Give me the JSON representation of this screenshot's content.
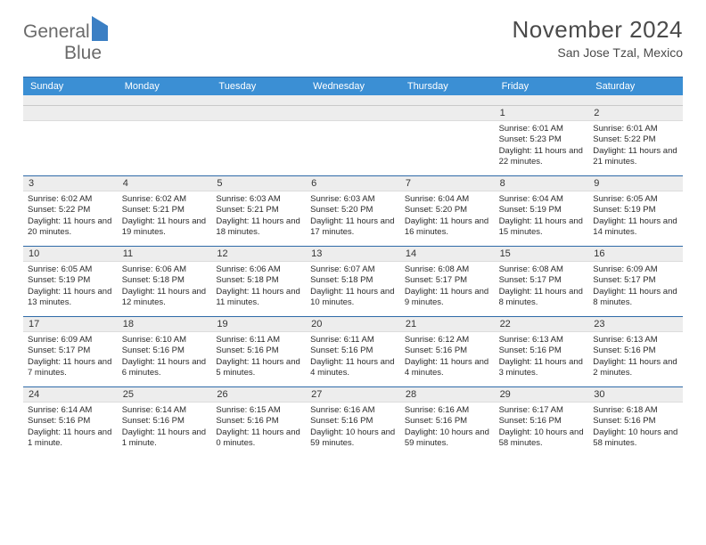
{
  "logo": {
    "general": "General",
    "blue": "Blue"
  },
  "title": "November 2024",
  "subtitle": "San Jose Tzal, Mexico",
  "colors": {
    "header_bg": "#3b8fd4",
    "rule": "#2f6aa8",
    "daynum_bg": "#ededed",
    "text": "#2b2b2b"
  },
  "dow": [
    "Sunday",
    "Monday",
    "Tuesday",
    "Wednesday",
    "Thursday",
    "Friday",
    "Saturday"
  ],
  "weeks": [
    [
      {
        "n": "",
        "sr": "",
        "ss": "",
        "dl": ""
      },
      {
        "n": "",
        "sr": "",
        "ss": "",
        "dl": ""
      },
      {
        "n": "",
        "sr": "",
        "ss": "",
        "dl": ""
      },
      {
        "n": "",
        "sr": "",
        "ss": "",
        "dl": ""
      },
      {
        "n": "",
        "sr": "",
        "ss": "",
        "dl": ""
      },
      {
        "n": "1",
        "sr": "Sunrise: 6:01 AM",
        "ss": "Sunset: 5:23 PM",
        "dl": "Daylight: 11 hours and 22 minutes."
      },
      {
        "n": "2",
        "sr": "Sunrise: 6:01 AM",
        "ss": "Sunset: 5:22 PM",
        "dl": "Daylight: 11 hours and 21 minutes."
      }
    ],
    [
      {
        "n": "3",
        "sr": "Sunrise: 6:02 AM",
        "ss": "Sunset: 5:22 PM",
        "dl": "Daylight: 11 hours and 20 minutes."
      },
      {
        "n": "4",
        "sr": "Sunrise: 6:02 AM",
        "ss": "Sunset: 5:21 PM",
        "dl": "Daylight: 11 hours and 19 minutes."
      },
      {
        "n": "5",
        "sr": "Sunrise: 6:03 AM",
        "ss": "Sunset: 5:21 PM",
        "dl": "Daylight: 11 hours and 18 minutes."
      },
      {
        "n": "6",
        "sr": "Sunrise: 6:03 AM",
        "ss": "Sunset: 5:20 PM",
        "dl": "Daylight: 11 hours and 17 minutes."
      },
      {
        "n": "7",
        "sr": "Sunrise: 6:04 AM",
        "ss": "Sunset: 5:20 PM",
        "dl": "Daylight: 11 hours and 16 minutes."
      },
      {
        "n": "8",
        "sr": "Sunrise: 6:04 AM",
        "ss": "Sunset: 5:19 PM",
        "dl": "Daylight: 11 hours and 15 minutes."
      },
      {
        "n": "9",
        "sr": "Sunrise: 6:05 AM",
        "ss": "Sunset: 5:19 PM",
        "dl": "Daylight: 11 hours and 14 minutes."
      }
    ],
    [
      {
        "n": "10",
        "sr": "Sunrise: 6:05 AM",
        "ss": "Sunset: 5:19 PM",
        "dl": "Daylight: 11 hours and 13 minutes."
      },
      {
        "n": "11",
        "sr": "Sunrise: 6:06 AM",
        "ss": "Sunset: 5:18 PM",
        "dl": "Daylight: 11 hours and 12 minutes."
      },
      {
        "n": "12",
        "sr": "Sunrise: 6:06 AM",
        "ss": "Sunset: 5:18 PM",
        "dl": "Daylight: 11 hours and 11 minutes."
      },
      {
        "n": "13",
        "sr": "Sunrise: 6:07 AM",
        "ss": "Sunset: 5:18 PM",
        "dl": "Daylight: 11 hours and 10 minutes."
      },
      {
        "n": "14",
        "sr": "Sunrise: 6:08 AM",
        "ss": "Sunset: 5:17 PM",
        "dl": "Daylight: 11 hours and 9 minutes."
      },
      {
        "n": "15",
        "sr": "Sunrise: 6:08 AM",
        "ss": "Sunset: 5:17 PM",
        "dl": "Daylight: 11 hours and 8 minutes."
      },
      {
        "n": "16",
        "sr": "Sunrise: 6:09 AM",
        "ss": "Sunset: 5:17 PM",
        "dl": "Daylight: 11 hours and 8 minutes."
      }
    ],
    [
      {
        "n": "17",
        "sr": "Sunrise: 6:09 AM",
        "ss": "Sunset: 5:17 PM",
        "dl": "Daylight: 11 hours and 7 minutes."
      },
      {
        "n": "18",
        "sr": "Sunrise: 6:10 AM",
        "ss": "Sunset: 5:16 PM",
        "dl": "Daylight: 11 hours and 6 minutes."
      },
      {
        "n": "19",
        "sr": "Sunrise: 6:11 AM",
        "ss": "Sunset: 5:16 PM",
        "dl": "Daylight: 11 hours and 5 minutes."
      },
      {
        "n": "20",
        "sr": "Sunrise: 6:11 AM",
        "ss": "Sunset: 5:16 PM",
        "dl": "Daylight: 11 hours and 4 minutes."
      },
      {
        "n": "21",
        "sr": "Sunrise: 6:12 AM",
        "ss": "Sunset: 5:16 PM",
        "dl": "Daylight: 11 hours and 4 minutes."
      },
      {
        "n": "22",
        "sr": "Sunrise: 6:13 AM",
        "ss": "Sunset: 5:16 PM",
        "dl": "Daylight: 11 hours and 3 minutes."
      },
      {
        "n": "23",
        "sr": "Sunrise: 6:13 AM",
        "ss": "Sunset: 5:16 PM",
        "dl": "Daylight: 11 hours and 2 minutes."
      }
    ],
    [
      {
        "n": "24",
        "sr": "Sunrise: 6:14 AM",
        "ss": "Sunset: 5:16 PM",
        "dl": "Daylight: 11 hours and 1 minute."
      },
      {
        "n": "25",
        "sr": "Sunrise: 6:14 AM",
        "ss": "Sunset: 5:16 PM",
        "dl": "Daylight: 11 hours and 1 minute."
      },
      {
        "n": "26",
        "sr": "Sunrise: 6:15 AM",
        "ss": "Sunset: 5:16 PM",
        "dl": "Daylight: 11 hours and 0 minutes."
      },
      {
        "n": "27",
        "sr": "Sunrise: 6:16 AM",
        "ss": "Sunset: 5:16 PM",
        "dl": "Daylight: 10 hours and 59 minutes."
      },
      {
        "n": "28",
        "sr": "Sunrise: 6:16 AM",
        "ss": "Sunset: 5:16 PM",
        "dl": "Daylight: 10 hours and 59 minutes."
      },
      {
        "n": "29",
        "sr": "Sunrise: 6:17 AM",
        "ss": "Sunset: 5:16 PM",
        "dl": "Daylight: 10 hours and 58 minutes."
      },
      {
        "n": "30",
        "sr": "Sunrise: 6:18 AM",
        "ss": "Sunset: 5:16 PM",
        "dl": "Daylight: 10 hours and 58 minutes."
      }
    ]
  ]
}
